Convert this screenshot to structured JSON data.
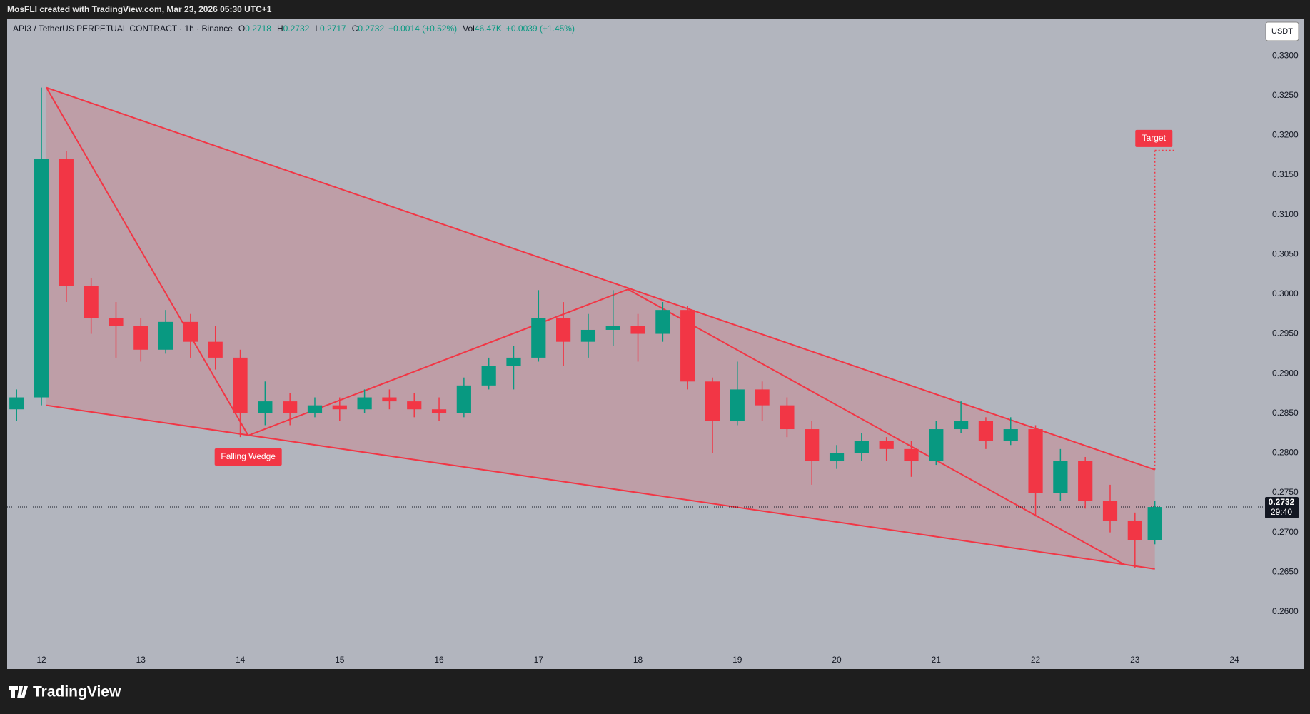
{
  "header": {
    "attribution": "MosFLI created with TradingView.com, Mar 23, 2026 05:30 UTC+1"
  },
  "legend": {
    "symbol": "API3 / TetherUS PERPETUAL CONTRACT · 1h · Binance",
    "ohlc": [
      {
        "key": "O",
        "value": "0.2718"
      },
      {
        "key": "H",
        "value": "0.2732"
      },
      {
        "key": "L",
        "value": "0.2717"
      },
      {
        "key": "C",
        "value": "0.2732"
      }
    ],
    "change": "+0.0014 (+0.52%)",
    "volume_key": "Vol",
    "volume": "46.47K",
    "volume_change": "+0.0039 (+1.45%)"
  },
  "currency_button": "USDT",
  "footer": {
    "logo": "TradingView"
  },
  "chart_data": {
    "type": "candlestick",
    "up_color": "#089981",
    "down_color": "#f23645",
    "drawing_color": "#f23645",
    "xlim": [
      11.655,
      24.294
    ],
    "ylim": [
      0.2528,
      0.3346
    ],
    "xticks": [
      12,
      13,
      14,
      15,
      16,
      17,
      18,
      19,
      20,
      21,
      22,
      23,
      24
    ],
    "yticks": [
      {
        "value": 0.26,
        "label": "0.2600"
      },
      {
        "value": 0.265,
        "label": "0.2650"
      },
      {
        "value": 0.27,
        "label": "0.2700"
      },
      {
        "value": 0.275,
        "label": "0.2750"
      },
      {
        "value": 0.28,
        "label": "0.2800"
      },
      {
        "value": 0.285,
        "label": "0.2850"
      },
      {
        "value": 0.29,
        "label": "0.2900"
      },
      {
        "value": 0.295,
        "label": "0.2950"
      },
      {
        "value": 0.3,
        "label": "0.3000"
      },
      {
        "value": 0.305,
        "label": "0.3050"
      },
      {
        "value": 0.31,
        "label": "0.3100"
      },
      {
        "value": 0.315,
        "label": "0.3150"
      },
      {
        "value": 0.32,
        "label": "0.3200"
      },
      {
        "value": 0.325,
        "label": "0.3250"
      },
      {
        "value": 0.33,
        "label": "0.3300"
      }
    ],
    "candles": {
      "x": [
        11.75,
        12.0,
        12.25,
        12.5,
        12.75,
        13.0,
        13.25,
        13.5,
        13.75,
        14.0,
        14.25,
        14.5,
        14.75,
        15.0,
        15.25,
        15.5,
        15.75,
        16.0,
        16.25,
        16.5,
        16.75,
        17.0,
        17.25,
        17.5,
        17.75,
        18.0,
        18.25,
        18.5,
        18.75,
        19.0,
        19.25,
        19.5,
        19.75,
        20.0,
        20.25,
        20.5,
        20.75,
        21.0,
        21.25,
        21.5,
        21.75,
        22.0,
        22.25,
        22.5,
        22.75,
        23.0,
        23.2
      ],
      "open": [
        0.2855,
        0.287,
        0.317,
        0.301,
        0.297,
        0.296,
        0.293,
        0.2965,
        0.294,
        0.292,
        0.285,
        0.2865,
        0.285,
        0.286,
        0.2855,
        0.287,
        0.2865,
        0.2855,
        0.285,
        0.2885,
        0.291,
        0.292,
        0.297,
        0.294,
        0.2955,
        0.296,
        0.295,
        0.298,
        0.289,
        0.284,
        0.288,
        0.286,
        0.283,
        0.279,
        0.28,
        0.2815,
        0.2805,
        0.279,
        0.283,
        0.284,
        0.2815,
        0.283,
        0.275,
        0.279,
        0.274,
        0.2715,
        0.269
      ],
      "high": [
        0.288,
        0.326,
        0.318,
        0.302,
        0.299,
        0.297,
        0.298,
        0.2975,
        0.296,
        0.293,
        0.289,
        0.2875,
        0.287,
        0.287,
        0.288,
        0.288,
        0.2875,
        0.287,
        0.2895,
        0.292,
        0.2935,
        0.3005,
        0.299,
        0.2975,
        0.3005,
        0.2975,
        0.299,
        0.2985,
        0.2895,
        0.2915,
        0.289,
        0.287,
        0.284,
        0.281,
        0.2825,
        0.282,
        0.2815,
        0.284,
        0.2865,
        0.2845,
        0.2845,
        0.2835,
        0.2805,
        0.2795,
        0.276,
        0.2725,
        0.274
      ],
      "low": [
        0.284,
        0.286,
        0.299,
        0.295,
        0.292,
        0.2915,
        0.2925,
        0.292,
        0.2905,
        0.282,
        0.2835,
        0.2835,
        0.2845,
        0.284,
        0.285,
        0.2855,
        0.2845,
        0.284,
        0.2845,
        0.288,
        0.288,
        0.2915,
        0.291,
        0.292,
        0.2935,
        0.2915,
        0.294,
        0.288,
        0.28,
        0.2835,
        0.284,
        0.282,
        0.276,
        0.278,
        0.279,
        0.279,
        0.277,
        0.2785,
        0.2825,
        0.2805,
        0.281,
        0.272,
        0.274,
        0.273,
        0.27,
        0.2655,
        0.2685
      ],
      "close": [
        0.287,
        0.317,
        0.301,
        0.297,
        0.296,
        0.293,
        0.2965,
        0.294,
        0.292,
        0.285,
        0.2865,
        0.285,
        0.286,
        0.2855,
        0.287,
        0.2865,
        0.2855,
        0.285,
        0.2885,
        0.291,
        0.292,
        0.297,
        0.294,
        0.2955,
        0.296,
        0.295,
        0.298,
        0.289,
        0.284,
        0.288,
        0.286,
        0.283,
        0.279,
        0.28,
        0.2815,
        0.2805,
        0.279,
        0.283,
        0.284,
        0.2815,
        0.283,
        0.275,
        0.279,
        0.274,
        0.2715,
        0.269,
        0.2732
      ]
    },
    "last_price": {
      "value": 0.2732,
      "label": "0.2732"
    },
    "countdown": "29:40",
    "drawings": {
      "wedge_upper": {
        "x": [
          12.05,
          23.2
        ],
        "y": [
          0.326,
          0.2779
        ]
      },
      "wedge_lower": {
        "x": [
          12.05,
          23.2
        ],
        "y": [
          0.286,
          0.2654
        ]
      },
      "zigzag": {
        "x": [
          12.05,
          14.08,
          17.9,
          22.9
        ],
        "y": [
          0.326,
          0.2822,
          0.3006,
          0.2659
        ]
      },
      "target": {
        "x": 23.2,
        "y": [
          0.2779,
          0.3181
        ],
        "label": "Target",
        "label_x": 23.19,
        "label_y": 0.3196
      },
      "pattern_label": {
        "x": 14.08,
        "y": 0.2795,
        "label": "Falling Wedge"
      }
    }
  }
}
